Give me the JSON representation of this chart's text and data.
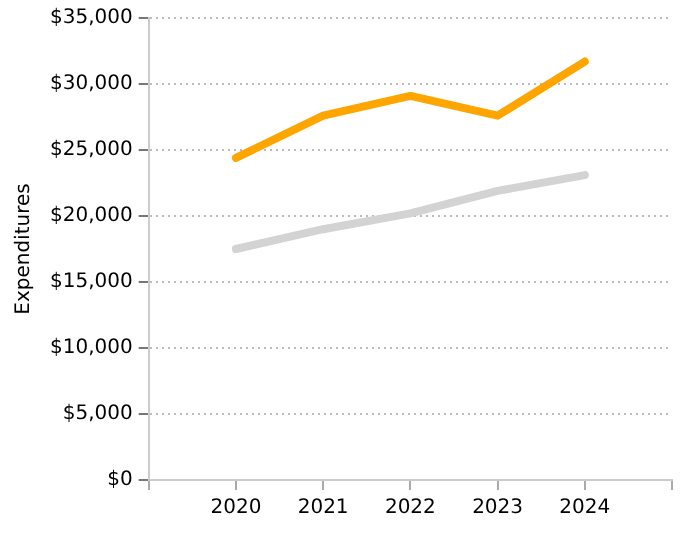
{
  "chart_data": {
    "type": "line",
    "ylabel": "Expenditures",
    "x": [
      2020,
      2021,
      2022,
      2023,
      2024
    ],
    "series": [
      {
        "color": "#ffa500",
        "values": [
          24400,
          27600,
          29100,
          27600,
          31700
        ]
      },
      {
        "color": "#d3d3d3",
        "values": [
          17500,
          19000,
          20200,
          21900,
          23100
        ]
      }
    ],
    "xlim": [
      2019,
      2025
    ],
    "xticks": [
      {
        "value": 2019,
        "label": null
      },
      2020,
      2021,
      2022,
      2023,
      2024,
      {
        "value": 2025,
        "label": null
      }
    ],
    "ylim": [
      0,
      35000
    ],
    "yticks": [
      {
        "value": 0,
        "label": "$0"
      },
      {
        "value": 5000,
        "label": "$5,000"
      },
      {
        "value": 10000,
        "label": "$10,000"
      },
      {
        "value": 15000,
        "label": "$15,000"
      },
      {
        "value": 20000,
        "label": "$20,000"
      },
      {
        "value": 25000,
        "label": "$25,000"
      },
      {
        "value": 30000,
        "label": "$30,000"
      },
      {
        "value": 35000,
        "label": "$35,000"
      }
    ],
    "grid": "y",
    "legend": false,
    "marker": "none",
    "line_style": "solid"
  }
}
